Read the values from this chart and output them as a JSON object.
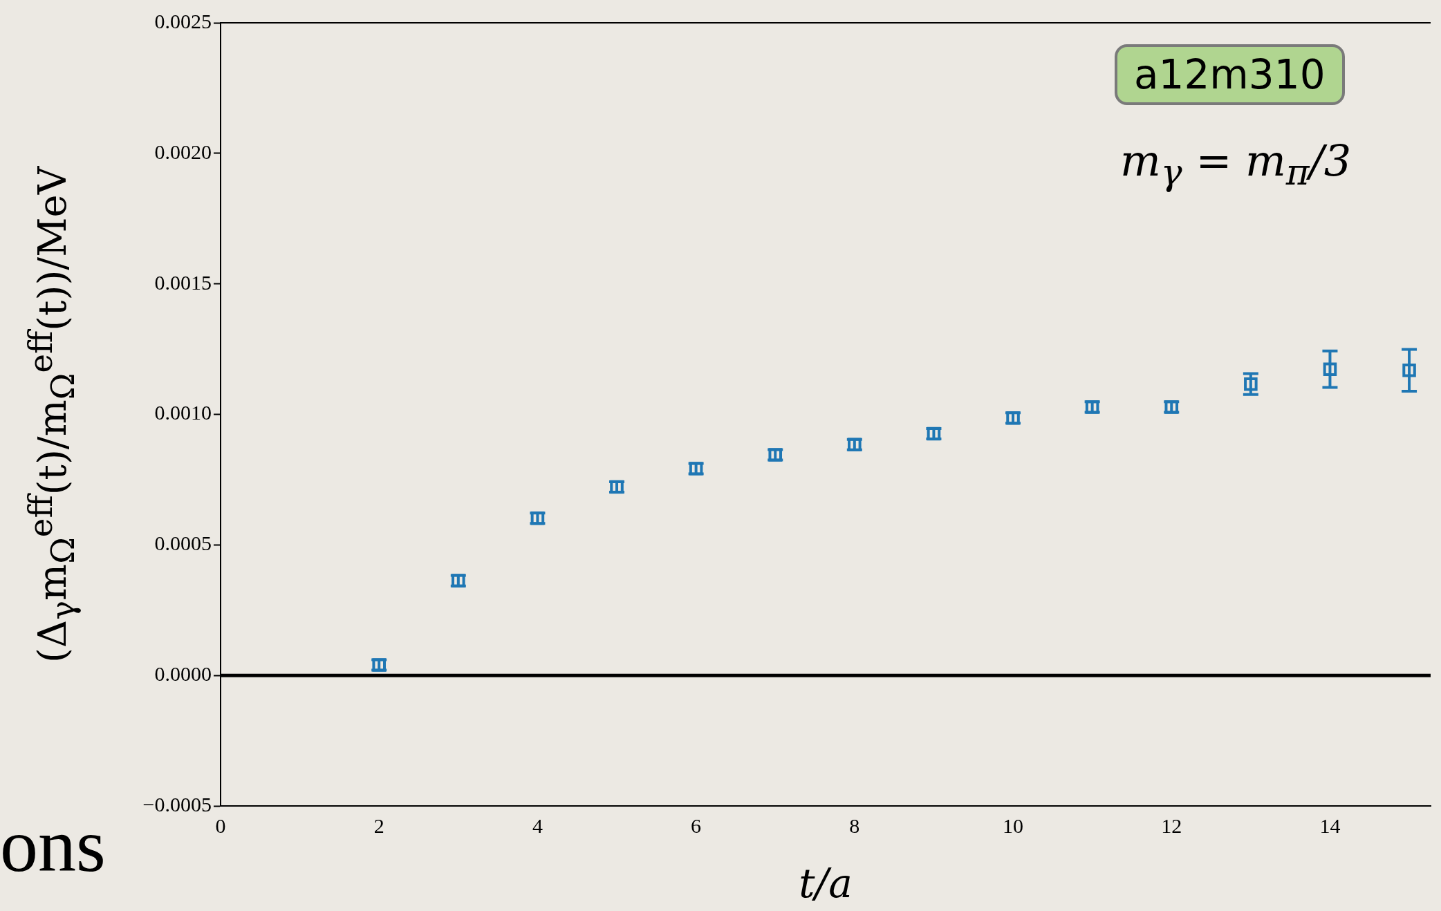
{
  "chart_data": {
    "type": "scatter",
    "xlabel": "t/a",
    "ylabel": "(Δ$_{γ}$m$_{Ω}$$^{eff}$(t)/m$_{Ω}$$^{eff}$(t))/MeV",
    "annotations": [
      "a12m310",
      "m$_{γ}$ = m$_{π}$/3",
      "ons"
    ],
    "x": [
      2,
      3,
      4,
      5,
      6,
      7,
      8,
      9,
      10,
      11,
      12,
      13,
      14,
      15
    ],
    "series": [
      {
        "color": "#1f77b4",
        "values": [
          4e-05,
          0.000363,
          0.000602,
          0.000722,
          0.000792,
          0.000845,
          0.000884,
          0.000926,
          0.000986,
          0.001028,
          0.001028,
          0.001116,
          0.001173,
          0.001169
        ],
        "errors": [
          2e-05,
          2e-05,
          2e-05,
          2e-05,
          2e-05,
          2e-05,
          2e-05,
          2e-05,
          2e-05,
          2e-05,
          2e-05,
          4e-05,
          7e-05,
          8e-05
        ]
      }
    ],
    "xlim": [
      0,
      15.27
    ],
    "xticks": [
      0,
      2,
      4,
      6,
      8,
      10,
      12,
      14
    ],
    "ylim": [
      -0.0005,
      0.0025
    ],
    "yticks": [
      {
        "value": -0.0005,
        "label": "−0.0005"
      },
      {
        "value": 0,
        "label": "0.0000"
      },
      {
        "value": 0.0005,
        "label": "0.0005"
      },
      {
        "value": 0.001,
        "label": "0.0010"
      },
      {
        "value": 0.0015,
        "label": "0.0015"
      },
      {
        "value": 0.002,
        "label": "0.0020"
      },
      {
        "value": 0.0025,
        "label": "0.0025"
      }
    ],
    "ref_lines": [
      {
        "axis": "y",
        "value": 0,
        "color": "#000000"
      }
    ],
    "marker": "square",
    "grid": false,
    "legend": false
  }
}
